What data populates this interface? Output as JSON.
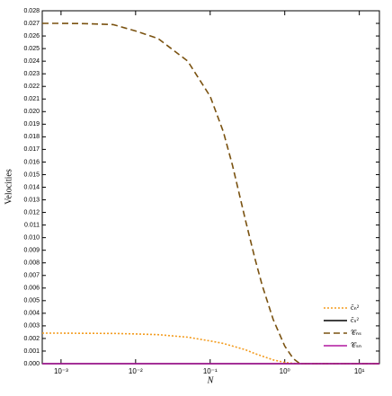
{
  "chart_data": {
    "type": "line",
    "xlabel": "N",
    "ylabel": "Velocities",
    "xscale": "log",
    "x": [
      0.00056,
      0.001,
      0.002,
      0.005,
      0.01,
      0.02,
      0.05,
      0.1,
      0.15,
      0.2,
      0.3,
      0.4,
      0.5,
      0.7,
      1,
      1.3,
      1.6,
      2,
      5,
      10,
      18.6
    ],
    "series": [
      {
        "name": "c̃ₙ²",
        "color": "#f39c1f",
        "dash": "2,2",
        "values": [
          0.00242,
          0.00242,
          0.00241,
          0.0024,
          0.00236,
          0.0023,
          0.0021,
          0.0018,
          0.0016,
          0.0014,
          0.0011,
          0.0008,
          0.0006,
          0.0003,
          0.0001,
          2e-05,
          0,
          0,
          0,
          0,
          0
        ]
      },
      {
        "name": "c̃ₛ²",
        "color": "#000000",
        "dash": "",
        "values": [
          0,
          0,
          0,
          0,
          0,
          0,
          0,
          0,
          0,
          0,
          0,
          0,
          0,
          0,
          0,
          0,
          0,
          0,
          0,
          0,
          0
        ]
      },
      {
        "name": "𝒞ₙₛ",
        "color": "#7a5210",
        "dash": "7,4",
        "values": [
          0.027,
          0.027,
          0.02698,
          0.0269,
          0.0264,
          0.0258,
          0.024,
          0.0212,
          0.0184,
          0.0157,
          0.0113,
          0.0083,
          0.0062,
          0.0035,
          0.0014,
          0.0004,
          0,
          0,
          0,
          0,
          0
        ]
      },
      {
        "name": "𝒞ₛₙ",
        "color": "#b0179f",
        "dash": "",
        "values": [
          0,
          0,
          0,
          0,
          0,
          0,
          0,
          0,
          0,
          0,
          0,
          0,
          0,
          0,
          0,
          0,
          0,
          0,
          0,
          0,
          0
        ]
      }
    ],
    "xlim": [
      0.00056,
      18.6
    ],
    "xticks": [
      {
        "value": 0.001,
        "label": "10⁻³"
      },
      {
        "value": 0.01,
        "label": "10⁻²"
      },
      {
        "value": 0.1,
        "label": "10⁻¹"
      },
      {
        "value": 1,
        "label": "10⁰"
      },
      {
        "value": 10,
        "label": "10¹"
      }
    ],
    "ylim": [
      0,
      0.028
    ],
    "yticks": [
      {
        "value": 0,
        "label": "0.000"
      },
      0.001,
      0.002,
      0.003,
      0.004,
      0.005,
      0.006,
      0.007,
      0.008,
      0.009,
      {
        "value": 0.01,
        "label": "0.010"
      },
      0.011,
      0.012,
      0.013,
      0.014,
      0.015,
      0.016,
      0.017,
      0.018,
      0.019,
      {
        "value": 0.02,
        "label": "0.020"
      },
      0.021,
      0.022,
      0.023,
      0.024,
      0.025,
      0.026,
      0.027,
      0.028
    ],
    "legend": "lower-right"
  }
}
